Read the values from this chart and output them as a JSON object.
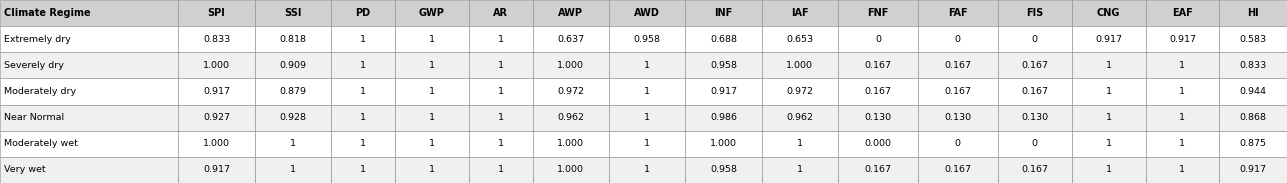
{
  "columns": [
    "Climate Regime",
    "SPI",
    "SSI",
    "PD",
    "GWP",
    "AR",
    "AWP",
    "AWD",
    "INF",
    "IAF",
    "FNF",
    "FAF",
    "FIS",
    "CNG",
    "EAF",
    "HI"
  ],
  "rows": [
    [
      "Extremely dry",
      "0.833",
      "0.818",
      "1",
      "1",
      "1",
      "0.637",
      "0.958",
      "0.688",
      "0.653",
      "0",
      "0",
      "0",
      "0.917",
      "0.917",
      "0.583"
    ],
    [
      "Severely dry",
      "1.000",
      "0.909",
      "1",
      "1",
      "1",
      "1.000",
      "1",
      "0.958",
      "1.000",
      "0.167",
      "0.167",
      "0.167",
      "1",
      "1",
      "0.833"
    ],
    [
      "Moderately dry",
      "0.917",
      "0.879",
      "1",
      "1",
      "1",
      "0.972",
      "1",
      "0.917",
      "0.972",
      "0.167",
      "0.167",
      "0.167",
      "1",
      "1",
      "0.944"
    ],
    [
      "Near Normal",
      "0.927",
      "0.928",
      "1",
      "1",
      "1",
      "0.962",
      "1",
      "0.986",
      "0.962",
      "0.130",
      "0.130",
      "0.130",
      "1",
      "1",
      "0.868"
    ],
    [
      "Moderately wet",
      "1.000",
      "1",
      "1",
      "1",
      "1",
      "1.000",
      "1",
      "1.000",
      "1",
      "0.000",
      "0",
      "0",
      "1",
      "1",
      "0.875"
    ],
    [
      "Very wet",
      "0.917",
      "1",
      "1",
      "1",
      "1",
      "1.000",
      "1",
      "0.958",
      "1",
      "0.167",
      "0.167",
      "0.167",
      "1",
      "1",
      "0.917"
    ]
  ],
  "header_bg": "#d0d0d0",
  "row_bg_odd": "#f0f0f0",
  "row_bg_even": "#ffffff",
  "header_font_size": 7.0,
  "cell_font_size": 6.8,
  "figsize": [
    12.87,
    1.83
  ],
  "dpi": 100,
  "col_widths": [
    1.45,
    0.62,
    0.62,
    0.52,
    0.6,
    0.52,
    0.62,
    0.62,
    0.62,
    0.62,
    0.65,
    0.65,
    0.6,
    0.6,
    0.6,
    0.55
  ]
}
